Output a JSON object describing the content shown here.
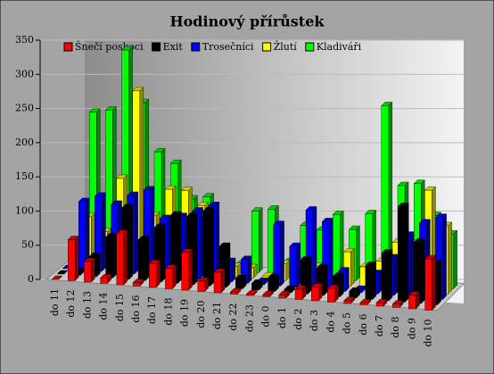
{
  "chart_data": {
    "type": "bar3d",
    "title": "Hodinový přírůstek",
    "categories": [
      "do 11",
      "do 12",
      "do 13",
      "do 14",
      "do 15",
      "do 16",
      "do 17",
      "do 18",
      "do 19",
      "do 20",
      "do 21",
      "do 22",
      "do 23",
      "do 0",
      "do 1",
      "do 2",
      "do 3",
      "do 4",
      "do 5",
      "do 6",
      "do 7",
      "do 8",
      "do 9",
      "do 10"
    ],
    "series": [
      {
        "name": "Šnečí poskoci",
        "color": "#ff0000",
        "values": [
          0,
          60,
          30,
          8,
          75,
          5,
          35,
          30,
          55,
          15,
          30,
          3,
          2,
          3,
          5,
          15,
          20,
          20,
          4,
          3,
          5,
          5,
          20,
          75
        ]
      },
      {
        "name": "Exit",
        "color": "#000000",
        "values": [
          0,
          5,
          30,
          60,
          105,
          60,
          80,
          100,
          100,
          110,
          60,
          15,
          10,
          20,
          5,
          50,
          40,
          30,
          10,
          50,
          70,
          140,
          90,
          60
        ]
      },
      {
        "name": "Trosečníci",
        "color": "#0000ff",
        "values": [
          0,
          100,
          110,
          100,
          115,
          125,
          85,
          90,
          100,
          110,
          30,
          35,
          5,
          90,
          60,
          115,
          100,
          30,
          5,
          30,
          55,
          90,
          110,
          120
        ]
      },
      {
        "name": "Žlutí",
        "color": "#ffff00",
        "values": [
          0,
          70,
          50,
          130,
          260,
          80,
          120,
          120,
          100,
          20,
          15,
          15,
          5,
          25,
          30,
          25,
          5,
          50,
          30,
          40,
          70,
          70,
          150,
          100
        ]
      },
      {
        "name": "Kladiváři",
        "color": "#00ff00",
        "values": [
          0,
          215,
          220,
          310,
          235,
          165,
          150,
          100,
          105,
          30,
          10,
          90,
          95,
          20,
          75,
          70,
          95,
          75,
          100,
          260,
          145,
          150,
          105,
          80
        ]
      }
    ],
    "ylim": [
      0,
      350
    ],
    "yticks": [
      0,
      50,
      100,
      150,
      200,
      250,
      300,
      350
    ],
    "grid": true
  }
}
